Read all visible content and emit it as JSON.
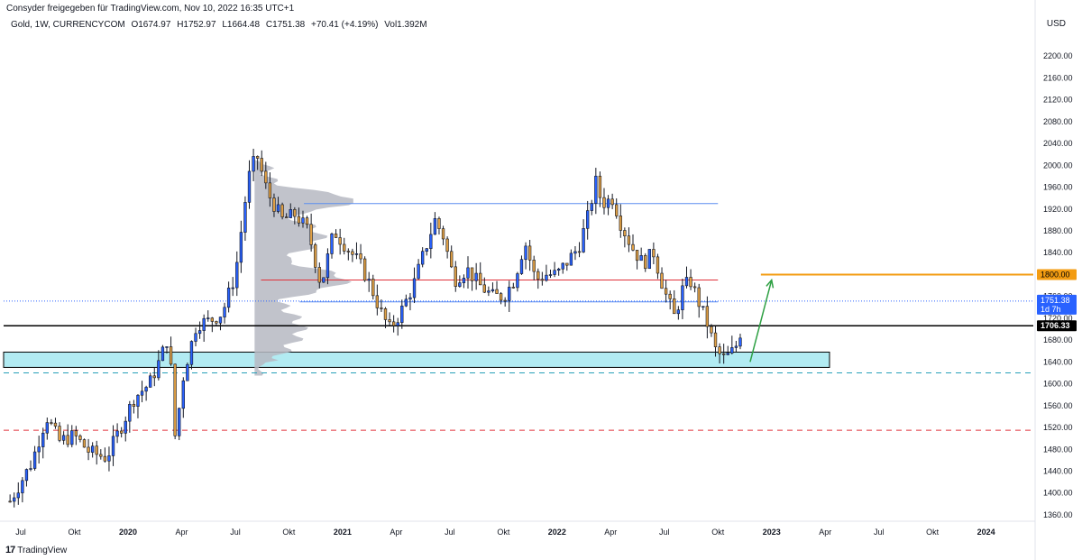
{
  "header": {
    "published": "Consyder freigegeben für TradingView.com, Nov 10, 2022 16:35 UTC+1"
  },
  "legend": {
    "symbol": "Gold, 1W, CURRENCYCOM",
    "open": "O1674.97",
    "high": "H1752.97",
    "low": "L1664.48",
    "close": "C1751.38",
    "change": "+70.41 (+4.19%)",
    "volume": "Vol1.392M"
  },
  "axis": {
    "currency": "USD"
  },
  "footer": {
    "brand_logo": "17",
    "brand_name": "TradingView"
  },
  "colors": {
    "up": "#2962ff",
    "down": "#e0a045",
    "resistance_blue": "#5b8ef0",
    "red_line": "#e0303a",
    "black_line": "#000000",
    "target_orange": "#f39c12",
    "support_zone": "#b2ebf2",
    "arrow_green": "#2ea043"
  },
  "chart_data": {
    "type": "candlestick",
    "timeframe": "1W",
    "ylim": [
      1350,
      2240
    ],
    "y_ticks": [
      1360,
      1400,
      1440,
      1480,
      1520,
      1560,
      1600,
      1640,
      1680,
      1720,
      1760,
      1800,
      1840,
      1880,
      1920,
      1960,
      2000,
      2040,
      2080,
      2120,
      2160,
      2200
    ],
    "x_ticks": [
      {
        "label": "Jul",
        "x": 2019.5,
        "bold": false
      },
      {
        "label": "Okt",
        "x": 2019.75,
        "bold": false
      },
      {
        "label": "2020",
        "x": 2020.0,
        "bold": true
      },
      {
        "label": "Apr",
        "x": 2020.25,
        "bold": false
      },
      {
        "label": "Jul",
        "x": 2020.5,
        "bold": false
      },
      {
        "label": "Okt",
        "x": 2020.75,
        "bold": false
      },
      {
        "label": "2021",
        "x": 2021.0,
        "bold": true
      },
      {
        "label": "Apr",
        "x": 2021.25,
        "bold": false
      },
      {
        "label": "Jul",
        "x": 2021.5,
        "bold": false
      },
      {
        "label": "Okt",
        "x": 2021.75,
        "bold": false
      },
      {
        "label": "2022",
        "x": 2022.0,
        "bold": true
      },
      {
        "label": "Apr",
        "x": 2022.25,
        "bold": false
      },
      {
        "label": "Jul",
        "x": 2022.5,
        "bold": false
      },
      {
        "label": "Okt",
        "x": 2022.75,
        "bold": false
      },
      {
        "label": "2023",
        "x": 2023.0,
        "bold": true
      },
      {
        "label": "Apr",
        "x": 2023.25,
        "bold": false
      },
      {
        "label": "Jul",
        "x": 2023.5,
        "bold": false
      },
      {
        "label": "Okt",
        "x": 2023.75,
        "bold": false
      },
      {
        "label": "2024",
        "x": 2024.0,
        "bold": true
      }
    ],
    "xlim": [
      2019.42,
      2024.22
    ],
    "close_path": [
      [
        2019.45,
        1385
      ],
      [
        2019.55,
        1455
      ],
      [
        2019.62,
        1540
      ],
      [
        2019.68,
        1495
      ],
      [
        2019.75,
        1505
      ],
      [
        2019.82,
        1475
      ],
      [
        2019.9,
        1465
      ],
      [
        2019.96,
        1515
      ],
      [
        2020.03,
        1575
      ],
      [
        2020.1,
        1600
      ],
      [
        2020.15,
        1645
      ],
      [
        2020.19,
        1690
      ],
      [
        2020.22,
        1500
      ],
      [
        2020.26,
        1620
      ],
      [
        2020.32,
        1710
      ],
      [
        2020.38,
        1715
      ],
      [
        2020.44,
        1730
      ],
      [
        2020.5,
        1800
      ],
      [
        2020.56,
        1975
      ],
      [
        2020.6,
        2020
      ],
      [
        2020.65,
        1950
      ],
      [
        2020.72,
        1900
      ],
      [
        2020.78,
        1910
      ],
      [
        2020.84,
        1880
      ],
      [
        2020.9,
        1780
      ],
      [
        2020.96,
        1880
      ],
      [
        2021.02,
        1850
      ],
      [
        2021.08,
        1820
      ],
      [
        2021.13,
        1780
      ],
      [
        2021.18,
        1730
      ],
      [
        2021.22,
        1700
      ],
      [
        2021.27,
        1730
      ],
      [
        2021.33,
        1780
      ],
      [
        2021.38,
        1840
      ],
      [
        2021.43,
        1900
      ],
      [
        2021.47,
        1870
      ],
      [
        2021.52,
        1790
      ],
      [
        2021.58,
        1810
      ],
      [
        2021.64,
        1780
      ],
      [
        2021.7,
        1760
      ],
      [
        2021.75,
        1760
      ],
      [
        2021.8,
        1790
      ],
      [
        2021.85,
        1860
      ],
      [
        2021.9,
        1790
      ],
      [
        2021.95,
        1800
      ],
      [
        2022.0,
        1800
      ],
      [
        2022.06,
        1830
      ],
      [
        2022.1,
        1850
      ],
      [
        2022.14,
        1900
      ],
      [
        2022.18,
        1970
      ],
      [
        2022.21,
        1930
      ],
      [
        2022.26,
        1940
      ],
      [
        2022.3,
        1890
      ],
      [
        2022.35,
        1850
      ],
      [
        2022.4,
        1820
      ],
      [
        2022.45,
        1840
      ],
      [
        2022.5,
        1770
      ],
      [
        2022.55,
        1720
      ],
      [
        2022.58,
        1770
      ],
      [
        2022.62,
        1790
      ],
      [
        2022.66,
        1750
      ],
      [
        2022.7,
        1710
      ],
      [
        2022.74,
        1660
      ],
      [
        2022.78,
        1645
      ],
      [
        2022.82,
        1660
      ],
      [
        2022.85,
        1680
      ],
      [
        2022.87,
        1751
      ]
    ],
    "volume_profile": {
      "x_start": 2020.59,
      "x_end": 2021.05,
      "price_range": [
        1615,
        2010
      ]
    },
    "levels": [
      {
        "name": "resistance",
        "price": 1930,
        "x_start": 2020.82,
        "x_end": 2022.75,
        "color": "#5b8ef0",
        "style": "solid"
      },
      {
        "name": "mid-red",
        "price": 1790,
        "x_start": 2020.62,
        "x_end": 2022.75,
        "color": "#e0303a",
        "style": "solid"
      },
      {
        "name": "mid-blue",
        "price": 1750,
        "x_start": 2020.8,
        "x_end": 2022.75,
        "color": "#5b8ef0",
        "style": "solid"
      },
      {
        "name": "support-black",
        "price": 1706.33,
        "x_start": 2019.42,
        "x_end": 2024.22,
        "color": "#000000",
        "style": "solid"
      },
      {
        "name": "target-orange",
        "price": 1800,
        "x_start": 2022.95,
        "x_end": 2024.22,
        "color": "#f39c12",
        "style": "solid"
      },
      {
        "name": "dashed-teal",
        "price": 1620,
        "x_start": 2019.42,
        "x_end": 2024.22,
        "color": "#26a0b8",
        "style": "dashed"
      },
      {
        "name": "dashed-red",
        "price": 1515,
        "x_start": 2019.42,
        "x_end": 2024.22,
        "color": "#e0303a",
        "style": "dashed"
      },
      {
        "name": "last-price-dotted",
        "price": 1751.38,
        "x_start": 2019.42,
        "x_end": 2024.22,
        "color": "#2962ff",
        "style": "dotted"
      }
    ],
    "zone": {
      "price_low": 1630,
      "price_high": 1658,
      "x_start": 2019.42,
      "x_end": 2023.27
    },
    "arrow": {
      "from": [
        2022.9,
        1640
      ],
      "to": [
        2023.0,
        1790
      ]
    },
    "price_labels": [
      {
        "value": "1800.00",
        "price": 1800,
        "bg": "#f39c12",
        "fg": "#000000"
      },
      {
        "value": "1751.38",
        "sub": "1d 7h",
        "price": 1751.38,
        "bg": "#2962ff",
        "fg": "#ffffff"
      },
      {
        "value": "1706.33",
        "price": 1706.33,
        "bg": "#000000",
        "fg": "#ffffff"
      }
    ]
  }
}
